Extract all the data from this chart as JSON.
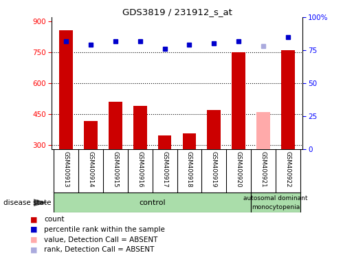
{
  "title": "GDS3819 / 231912_s_at",
  "samples": [
    "GSM400913",
    "GSM400914",
    "GSM400915",
    "GSM400916",
    "GSM400917",
    "GSM400918",
    "GSM400919",
    "GSM400920",
    "GSM400921",
    "GSM400922"
  ],
  "bar_values": [
    855,
    415,
    510,
    490,
    345,
    355,
    470,
    750,
    460,
    760
  ],
  "bar_colors": [
    "#cc0000",
    "#cc0000",
    "#cc0000",
    "#cc0000",
    "#cc0000",
    "#cc0000",
    "#cc0000",
    "#cc0000",
    "#ffaaaa",
    "#cc0000"
  ],
  "dot_values": [
    82,
    79,
    82,
    82,
    76,
    79,
    80,
    82,
    78,
    85
  ],
  "dot_colors": [
    "#0000cc",
    "#0000cc",
    "#0000cc",
    "#0000cc",
    "#0000cc",
    "#0000cc",
    "#0000cc",
    "#0000cc",
    "#aaaadd",
    "#0000cc"
  ],
  "ylim_left": [
    280,
    920
  ],
  "ylim_right": [
    0,
    100
  ],
  "yticks_left": [
    300,
    450,
    600,
    750,
    900
  ],
  "yticks_right": [
    0,
    25,
    50,
    75,
    100
  ],
  "ytick_labels_right": [
    "0",
    "25",
    "50",
    "75",
    "100%"
  ],
  "disease_label_line1": "autosomal dominant",
  "disease_label_line2": "monocytopenia",
  "control_label": "control",
  "disease_state_label": "disease state",
  "legend_items": [
    {
      "label": "count",
      "color": "#cc0000"
    },
    {
      "label": "percentile rank within the sample",
      "color": "#0000cc"
    },
    {
      "label": "value, Detection Call = ABSENT",
      "color": "#ffaaaa"
    },
    {
      "label": "rank, Detection Call = ABSENT",
      "color": "#aaaadd"
    }
  ],
  "bg_color": "#ffffff",
  "tick_area_color": "#cccccc",
  "control_bg": "#aaddaa",
  "disease_bg": "#aaddaa",
  "bar_bottom": 280,
  "bar_width": 0.55,
  "n_control": 8,
  "n_total": 10
}
